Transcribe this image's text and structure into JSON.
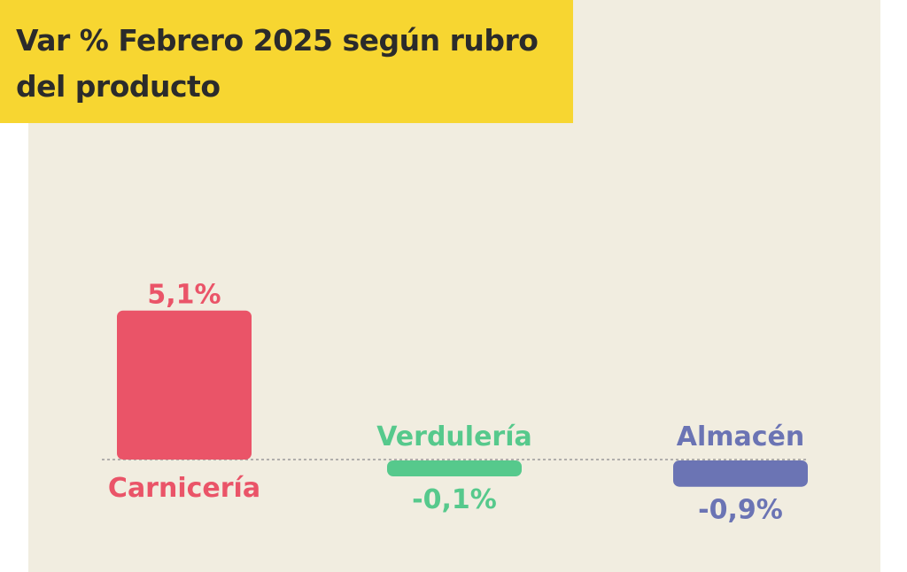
{
  "chart_data": {
    "type": "bar",
    "title": "Var % Febrero 2025 según rubro del producto",
    "categories": [
      "Carnicería",
      "Verdulería",
      "Almacén"
    ],
    "values": [
      5.1,
      -0.1,
      -0.9
    ],
    "value_labels": [
      "5,1%",
      "-0,1%",
      "-0,9%"
    ],
    "colors": [
      "#ea5468",
      "#56c98c",
      "#6b74b4"
    ],
    "unit": "%",
    "baseline": 0,
    "grid": false,
    "legend": "none"
  },
  "colors": {
    "panel_background": "#f1ede0",
    "title_background": "#f7d631",
    "title_text": "#2b2b2b",
    "baseline": "#9a9a9a"
  }
}
